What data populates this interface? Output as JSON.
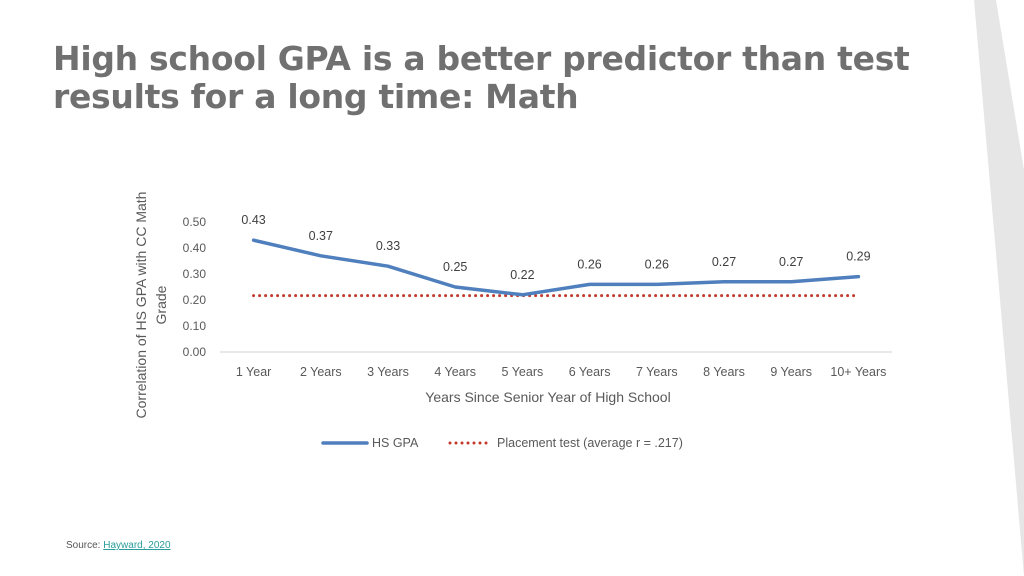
{
  "slide": {
    "title_line1": "High school GPA is a better predictor than test",
    "title_line2": "results for a long time: Math",
    "source_label": "Source:",
    "source_link": "Hayward, 2020"
  },
  "colors": {
    "title": "#707070",
    "hs_gpa_line": "#4f7fbd",
    "placement_line": "#c0392b",
    "axis_text": "#595959",
    "source_link": "#2a9d9a",
    "stripe": "#e6e6e6"
  },
  "chart_data": {
    "type": "line",
    "title": "",
    "xlabel": "Years Since Senior Year of High School",
    "ylabel": "Correlation of HS GPA with CC Math Grade",
    "categories": [
      "1 Year",
      "2 Years",
      "3 Years",
      "4 Years",
      "5 Years",
      "6 Years",
      "7 Years",
      "8 Years",
      "9 Years",
      "10+ Years"
    ],
    "ylim": [
      0,
      0.5
    ],
    "yticks": [
      "0.00",
      "0.10",
      "0.20",
      "0.30",
      "0.40",
      "0.50"
    ],
    "grid": false,
    "legend_position": "bottom",
    "series": [
      {
        "name": "HS GPA",
        "style": "solid",
        "values": [
          0.43,
          0.37,
          0.33,
          0.25,
          0.22,
          0.26,
          0.26,
          0.27,
          0.27,
          0.29
        ],
        "labels": [
          "0.43",
          "0.37",
          "0.33",
          "0.25",
          "0.22",
          "0.26",
          "0.26",
          "0.27",
          "0.27",
          "0.29"
        ]
      },
      {
        "name": "Placement test (average r = .217)",
        "style": "dotted",
        "values": [
          0.217,
          0.217,
          0.217,
          0.217,
          0.217,
          0.217,
          0.217,
          0.217,
          0.217,
          0.217
        ]
      }
    ]
  }
}
